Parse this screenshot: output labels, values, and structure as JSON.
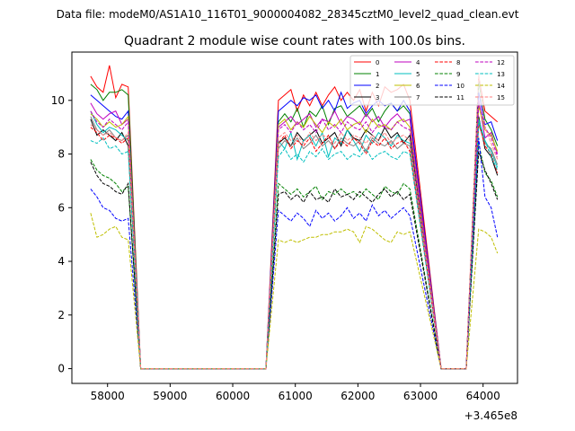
{
  "figure": {
    "suptitle": "Data file: modeM0/AS1A10_116T01_9000004082_28345cztM0_level2_quad_clean.evt"
  },
  "chart_data": {
    "type": "line",
    "title": "Quadrant 2 module wise count rates with 100.0s bins.",
    "xlabel": "",
    "ylabel": "",
    "x_offset_label": "+3.465e8",
    "xlim": [
      57430,
      64550
    ],
    "ylim": [
      -0.55,
      11.8
    ],
    "x_ticks": [
      58000,
      59000,
      60000,
      61000,
      62000,
      63000,
      64000
    ],
    "x_tick_labels": [
      "58000",
      "59000",
      "60000",
      "61000",
      "62000",
      "63000",
      "64000"
    ],
    "y_ticks": [
      0,
      2,
      4,
      6,
      8,
      10
    ],
    "y_tick_labels": [
      "0",
      "2",
      "4",
      "6",
      "8",
      "10"
    ],
    "grid": false,
    "legend_position": "top-right",
    "legend_columns": 4,
    "series": [
      {
        "name": "0",
        "color": "#ff0000",
        "dash": "solid",
        "values": [
          10.9,
          10.5,
          10.3,
          11.3,
          10.1,
          10.6,
          10.5,
          0,
          10.0,
          10.2,
          10.4,
          9.6,
          10.2,
          9.8,
          10.3,
          9.8,
          10.2,
          10.5,
          10.0,
          10.3,
          10.0,
          10.4,
          9.6,
          10.3,
          9.8,
          10.5,
          10.3,
          10.4,
          10.6,
          10.0,
          0,
          10.9,
          9.6,
          9.4,
          9.2
        ]
      },
      {
        "name": "1",
        "color": "#008000",
        "dash": "solid",
        "values": [
          10.6,
          10.4,
          10.0,
          10.3,
          10.3,
          10.4,
          10.2,
          0,
          9.2,
          9.5,
          9.2,
          9.7,
          9.0,
          9.6,
          9.4,
          9.8,
          9.1,
          9.7,
          9.8,
          9.4,
          9.6,
          9.8,
          9.4,
          9.7,
          9.2,
          9.6,
          9.9,
          9.6,
          9.8,
          9.5,
          0,
          10.7,
          9.3,
          8.9,
          8.3
        ]
      },
      {
        "name": "2",
        "color": "#0000ff",
        "dash": "solid",
        "values": [
          10.2,
          10.0,
          9.8,
          9.6,
          9.4,
          9.3,
          9.6,
          0,
          9.6,
          9.8,
          10.0,
          9.8,
          10.1,
          10.0,
          10.2,
          9.7,
          10.0,
          9.6,
          10.3,
          9.7,
          9.9,
          10.0,
          9.5,
          9.8,
          10.0,
          9.8,
          9.9,
          9.6,
          10.0,
          9.6,
          0,
          10.3,
          9.1,
          9.2,
          8.5
        ]
      },
      {
        "name": "3",
        "color": "#000000",
        "dash": "solid",
        "values": [
          9.3,
          8.7,
          8.9,
          8.7,
          8.5,
          8.8,
          8.3,
          0,
          8.4,
          8.6,
          8.3,
          8.8,
          8.5,
          8.7,
          8.9,
          8.4,
          8.6,
          8.8,
          8.3,
          8.9,
          8.6,
          8.5,
          8.9,
          8.7,
          8.5,
          9.0,
          8.6,
          8.8,
          8.4,
          8.7,
          0,
          9.4,
          8.2,
          7.9,
          7.2
        ]
      },
      {
        "name": "4",
        "color": "#bf00bf",
        "dash": "solid",
        "values": [
          9.9,
          9.5,
          9.3,
          9.5,
          9.6,
          9.1,
          9.3,
          0,
          9.0,
          9.2,
          9.4,
          9.1,
          9.3,
          9.5,
          9.0,
          9.3,
          9.2,
          9.6,
          9.1,
          9.4,
          9.3,
          9.1,
          9.5,
          9.2,
          9.4,
          9.0,
          9.3,
          9.5,
          9.2,
          9.3,
          0,
          10.0,
          8.6,
          8.8,
          8.0
        ]
      },
      {
        "name": "5",
        "color": "#00bfbf",
        "dash": "solid",
        "values": [
          9.6,
          9.1,
          8.8,
          9.0,
          8.9,
          8.7,
          8.5,
          0,
          8.5,
          8.2,
          8.8,
          7.8,
          8.5,
          8.7,
          8.3,
          8.8,
          7.9,
          8.6,
          8.4,
          8.9,
          8.5,
          8.1,
          8.7,
          8.4,
          8.8,
          8.6,
          8.3,
          8.7,
          8.5,
          8.4,
          0,
          9.3,
          8.5,
          8.1,
          7.5
        ]
      },
      {
        "name": "6",
        "color": "#bfbf00",
        "dash": "solid",
        "values": [
          9.5,
          9.3,
          9.0,
          9.2,
          9.0,
          9.1,
          9.4,
          0,
          9.1,
          9.3,
          8.9,
          9.2,
          9.0,
          9.4,
          9.1,
          8.8,
          9.2,
          9.0,
          9.3,
          8.9,
          9.1,
          9.2,
          8.8,
          9.3,
          9.0,
          9.1,
          8.9,
          9.2,
          9.3,
          9.0,
          0,
          9.8,
          8.9,
          8.7,
          8.1
        ]
      },
      {
        "name": "7",
        "color": "#808080",
        "dash": "solid",
        "values": [
          9.4,
          8.9,
          8.7,
          8.9,
          8.6,
          8.5,
          8.7,
          0,
          8.2,
          8.5,
          8.3,
          8.6,
          8.2,
          8.4,
          8.7,
          8.3,
          8.5,
          8.2,
          8.6,
          8.4,
          8.3,
          8.5,
          8.1,
          8.6,
          8.4,
          8.3,
          8.5,
          8.2,
          8.4,
          8.3,
          0,
          9.1,
          8.4,
          8.2,
          7.6
        ]
      },
      {
        "name": "8",
        "color": "#ff0000",
        "dash": "dashed",
        "values": [
          9.0,
          8.8,
          8.5,
          8.7,
          8.6,
          8.4,
          8.6,
          0,
          8.4,
          8.7,
          8.2,
          8.5,
          8.3,
          8.6,
          8.1,
          8.4,
          8.7,
          8.2,
          8.5,
          8.3,
          8.6,
          8.4,
          8.0,
          8.5,
          8.3,
          8.6,
          8.2,
          8.4,
          8.5,
          8.1,
          0,
          9.2,
          8.3,
          8.0,
          7.3
        ]
      },
      {
        "name": "9",
        "color": "#008000",
        "dash": "dashed",
        "values": [
          7.8,
          7.4,
          7.2,
          7.1,
          6.9,
          6.6,
          6.8,
          0,
          6.9,
          6.7,
          6.5,
          6.7,
          6.4,
          6.6,
          6.8,
          6.3,
          6.6,
          6.5,
          6.7,
          6.5,
          6.6,
          6.4,
          6.7,
          6.5,
          6.3,
          6.8,
          6.6,
          6.5,
          6.9,
          6.7,
          0,
          8.4,
          7.3,
          7.0,
          6.4
        ]
      },
      {
        "name": "10",
        "color": "#0000ff",
        "dash": "dashed",
        "values": [
          6.7,
          6.4,
          6.0,
          5.9,
          5.6,
          5.5,
          5.6,
          0,
          5.9,
          5.7,
          5.5,
          5.8,
          5.6,
          5.3,
          5.9,
          5.6,
          5.8,
          5.5,
          5.7,
          6.0,
          5.6,
          5.8,
          5.5,
          6.1,
          5.7,
          5.9,
          5.6,
          5.8,
          6.0,
          5.7,
          0,
          8.6,
          6.4,
          6.0,
          4.9
        ]
      },
      {
        "name": "11",
        "color": "#000000",
        "dash": "dashed",
        "values": [
          7.7,
          7.2,
          6.9,
          6.8,
          6.6,
          6.5,
          6.9,
          0,
          6.5,
          6.6,
          6.3,
          6.5,
          6.2,
          6.6,
          6.3,
          6.4,
          6.2,
          6.7,
          6.4,
          6.5,
          6.3,
          6.6,
          6.4,
          6.2,
          6.5,
          6.7,
          6.4,
          6.6,
          6.3,
          6.5,
          0,
          8.1,
          7.4,
          6.9,
          6.3
        ]
      },
      {
        "name": "12",
        "color": "#bf00bf",
        "dash": "dashed",
        "values": [
          9.6,
          9.2,
          9.0,
          9.3,
          9.1,
          8.9,
          9.2,
          0,
          8.9,
          9.1,
          8.8,
          9.2,
          8.9,
          9.1,
          8.8,
          9.3,
          8.9,
          9.1,
          8.8,
          9.2,
          9.0,
          8.9,
          9.2,
          8.8,
          9.1,
          9.0,
          8.9,
          9.2,
          9.0,
          8.9,
          0,
          9.9,
          9.0,
          8.6,
          7.9
        ]
      },
      {
        "name": "13",
        "color": "#00bfbf",
        "dash": "dashed",
        "values": [
          8.5,
          8.4,
          8.6,
          8.2,
          8.3,
          8.0,
          8.1,
          0,
          7.9,
          8.2,
          7.8,
          8.0,
          7.7,
          8.1,
          7.9,
          8.2,
          7.8,
          8.0,
          8.1,
          7.8,
          8.0,
          7.9,
          8.2,
          7.8,
          8.0,
          8.1,
          7.9,
          7.8,
          8.1,
          8.0,
          0,
          9.2,
          8.5,
          7.9,
          7.4
        ]
      },
      {
        "name": "14",
        "color": "#bfbf00",
        "dash": "dashed",
        "values": [
          5.8,
          4.9,
          5.0,
          5.2,
          5.3,
          4.9,
          4.8,
          0,
          4.8,
          4.7,
          4.8,
          4.7,
          4.8,
          4.9,
          4.9,
          5.0,
          5.0,
          5.1,
          5.1,
          5.2,
          5.1,
          4.7,
          5.3,
          5.2,
          5.0,
          4.8,
          4.7,
          5.1,
          5.0,
          5.1,
          0,
          5.2,
          5.1,
          4.9,
          4.3
        ]
      },
      {
        "name": "15",
        "color": "#ff8080",
        "dash": "dashed",
        "values": [
          9.1,
          8.9,
          8.7,
          8.8,
          8.6,
          8.5,
          8.8,
          0,
          8.6,
          8.8,
          8.5,
          8.7,
          8.4,
          8.8,
          8.5,
          8.7,
          8.6,
          8.4,
          8.8,
          8.5,
          8.7,
          8.6,
          8.4,
          8.7,
          8.5,
          8.8,
          8.4,
          8.6,
          8.7,
          8.5,
          0,
          11.0,
          9.0,
          8.4,
          7.8
        ]
      }
    ],
    "segments": [
      {
        "series_index_range": [
          0,
          6
        ],
        "x_start": 57730,
        "x_step": 100
      },
      {
        "zero_points_x": [
          58530,
          58630,
          58730,
          58830,
          58930,
          59030,
          59130,
          59230,
          59330,
          59430,
          59530,
          59630,
          59730,
          59830,
          59930,
          60030,
          60130,
          60230,
          60330,
          60430,
          60530
        ]
      },
      {
        "series_index_range": [
          8,
          29
        ],
        "x_start": 60730,
        "x_step": 100
      },
      {
        "zero_points_x": [
          63330,
          63430,
          63530,
          63630,
          63730
        ]
      },
      {
        "series_index_range": [
          31,
          34
        ],
        "x_start": 63930,
        "x_step": 100
      }
    ]
  }
}
